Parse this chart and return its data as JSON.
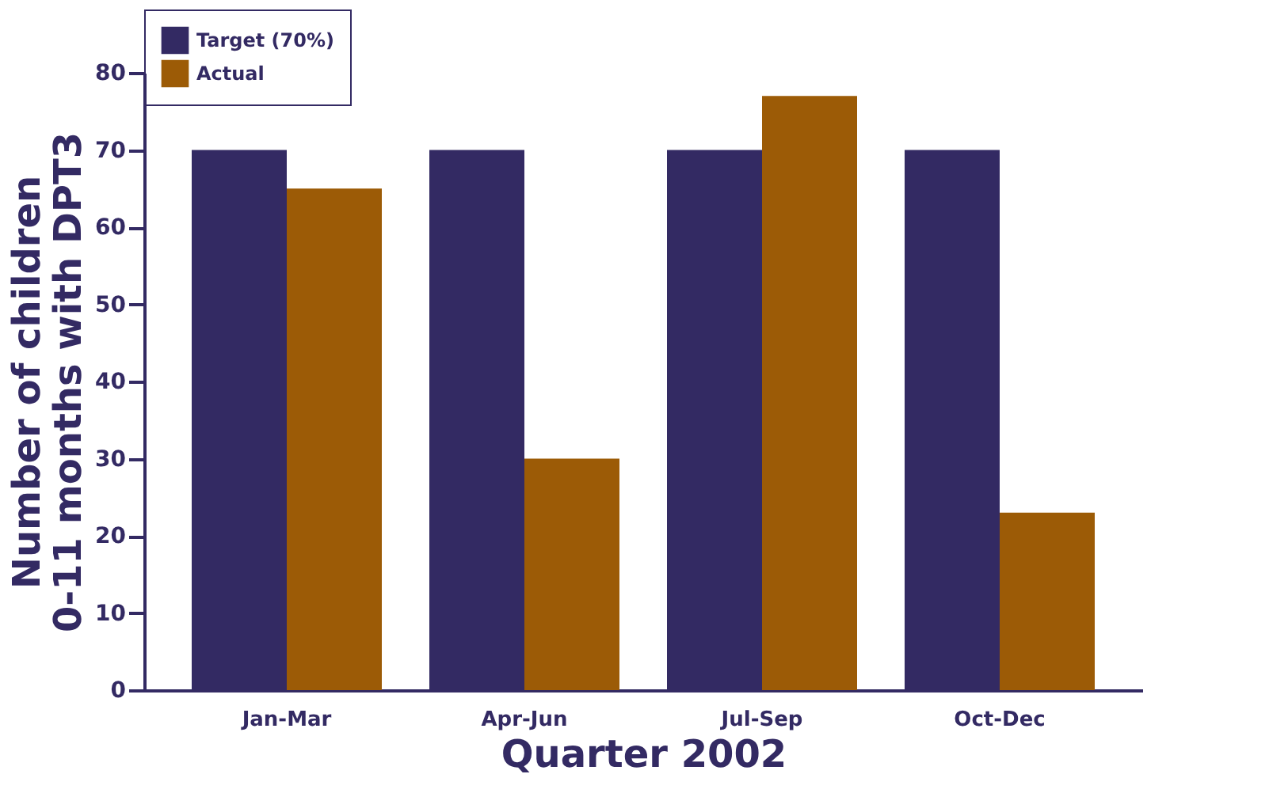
{
  "chart_data": {
    "type": "bar",
    "xlabel": "Quarter 2002",
    "ylabel": "Number of children\n0-11 months with DPT3",
    "categories": [
      "Jan-Mar",
      "Apr-Jun",
      "Jul-Sep",
      "Oct-Dec"
    ],
    "series": [
      {
        "name": "Target (70%)",
        "color": "#332a63",
        "values": [
          70,
          70,
          70,
          70
        ]
      },
      {
        "name": "Actual",
        "color": "#9c5b06",
        "values": [
          65,
          30,
          77,
          23
        ]
      }
    ],
    "ylim": [
      0,
      80
    ],
    "yticks": [
      0,
      10,
      20,
      30,
      40,
      50,
      60,
      70,
      80
    ],
    "grid": false,
    "legend": "top"
  }
}
